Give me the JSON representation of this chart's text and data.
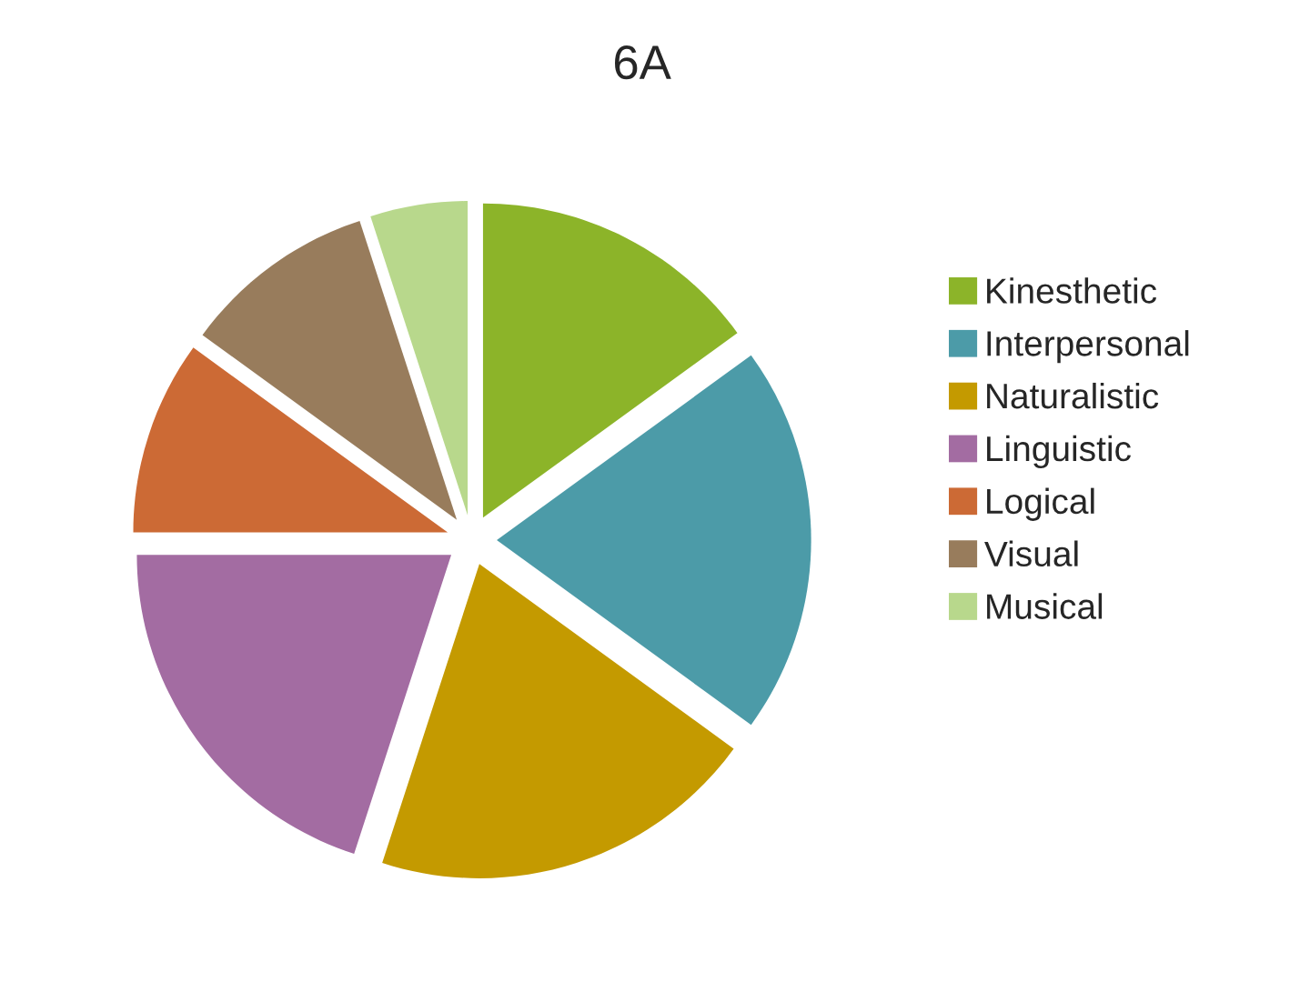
{
  "chart_data": {
    "type": "pie",
    "title": "6A",
    "categories": [
      "Kinesthetic",
      "Interpersonal",
      "Naturalistic",
      "Linguistic",
      "Logical",
      "Visual",
      "Musical"
    ],
    "values": [
      15,
      20,
      20,
      20,
      10,
      10,
      5
    ],
    "colors": [
      "#8cb429",
      "#4c9ba8",
      "#c49a00",
      "#a36ca2",
      "#cc6a35",
      "#987c5c",
      "#b8d88c"
    ],
    "legend": "right"
  }
}
